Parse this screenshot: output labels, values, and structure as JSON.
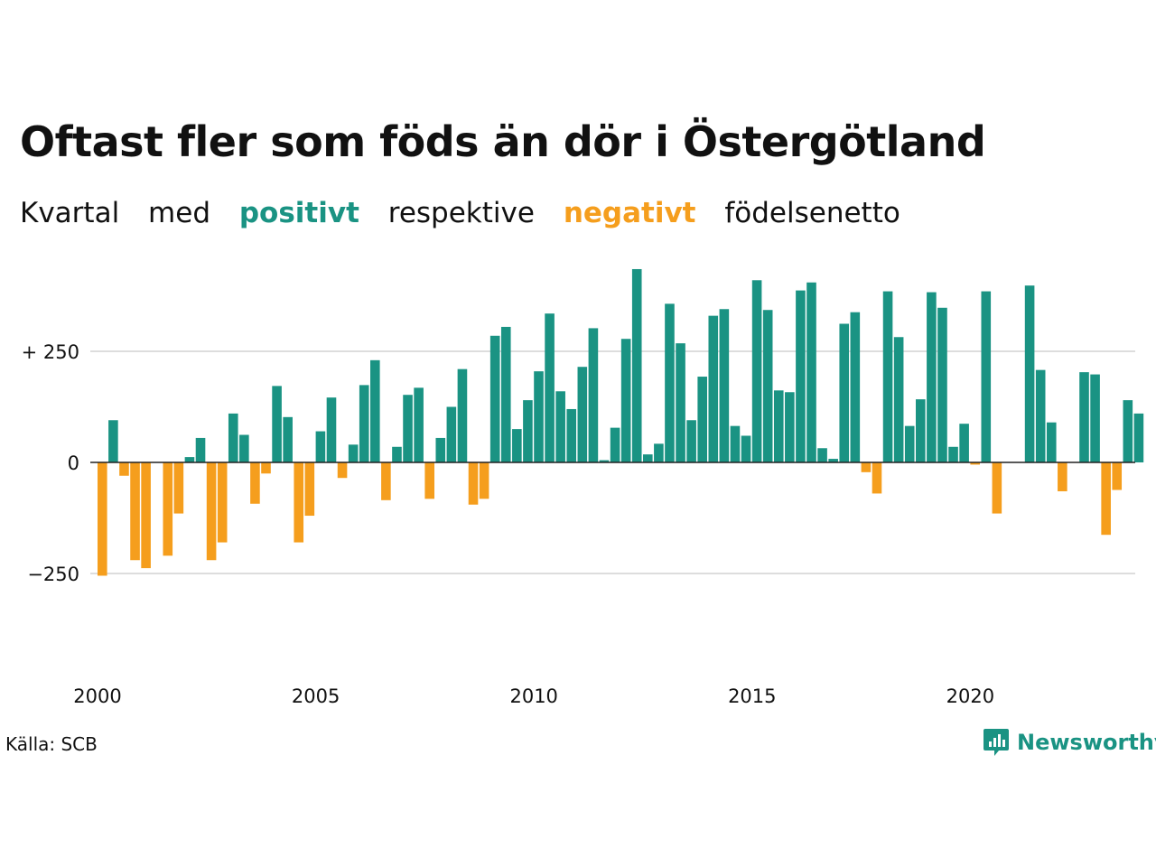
{
  "chart_data": {
    "type": "bar",
    "title": "Oftast fler som föds än dör i Östergötland",
    "subtitle": [
      "Kvartal",
      "med",
      "positivt",
      "respektive",
      "negativt",
      "födelsenetto"
    ],
    "start_year": 2000,
    "values": [
      -255,
      95,
      -30,
      -220,
      -238,
      0,
      -210,
      -115,
      12,
      55,
      -220,
      -180,
      110,
      62,
      -93,
      -25,
      172,
      102,
      -180,
      -120,
      70,
      146,
      -35,
      40,
      174,
      230,
      -85,
      35,
      152,
      168,
      -82,
      55,
      125,
      210,
      -95,
      -82,
      285,
      305,
      75,
      140,
      205,
      335,
      160,
      120,
      215,
      302,
      5,
      78,
      278,
      435,
      18,
      42,
      357,
      268,
      95,
      193,
      330,
      345,
      82,
      60,
      410,
      343,
      162,
      158,
      387,
      405,
      32,
      8,
      312,
      338,
      -22,
      -70,
      385,
      282,
      82,
      142,
      383,
      348,
      35,
      87,
      -5,
      385,
      -115,
      0,
      0,
      398,
      208,
      90,
      -65,
      0,
      203,
      198,
      -163,
      -62,
      140,
      110
    ],
    "x_tick_labels": [
      "2000",
      "2005",
      "2010",
      "2015",
      "2020"
    ],
    "y_ticks": [
      {
        "value": 250,
        "label": "+ 250"
      },
      {
        "value": 0,
        "label": "0"
      },
      {
        "value": -250,
        "label": "−250"
      }
    ],
    "ylim": [
      -400,
      450
    ],
    "colors": {
      "positive": "#1a9383",
      "negative": "#f59e1d",
      "grid": "#dddddd",
      "zero": "#222222"
    },
    "grid": true
  },
  "footer": {
    "source": "Källa: SCB",
    "brand": "Newsworthy"
  }
}
